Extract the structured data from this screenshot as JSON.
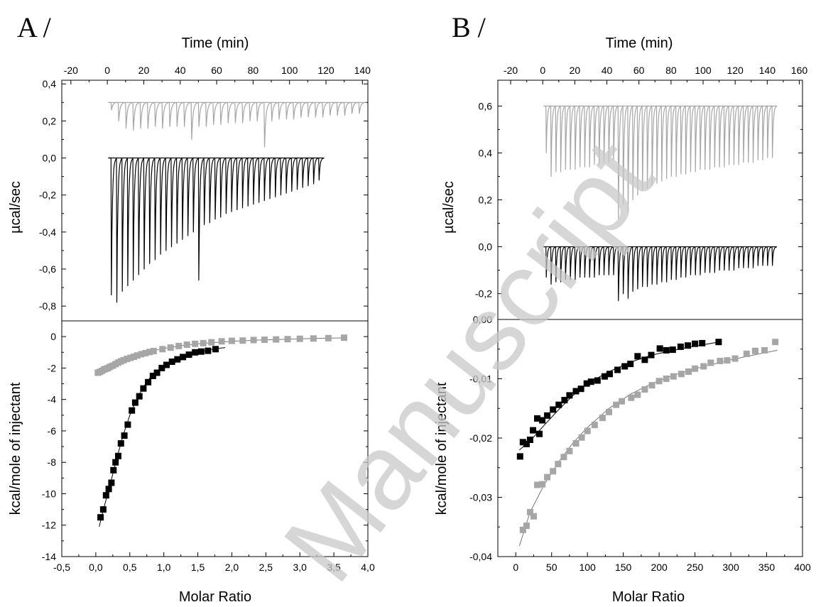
{
  "watermark": "Manuscript",
  "panels": [
    {
      "letter": "A /",
      "thermogram": {
        "x_label": "Time (min)",
        "y_label": "µcal/sec",
        "x_ticks": [
          "-20",
          "0",
          "20",
          "40",
          "60",
          "80",
          "100",
          "120",
          "140"
        ],
        "y_ticks": [
          "0,4",
          "0,2",
          "0,0",
          "-0,2",
          "-0,4",
          "-0,6",
          "-0,8"
        ]
      },
      "isotherm": {
        "x_label": "Molar Ratio",
        "y_label": "kcal/mole of injectant",
        "x_ticks": [
          "-0,5",
          "0,0",
          "0,5",
          "1,0",
          "1,5",
          "2,0",
          "2,5",
          "3,0",
          "3,5",
          "4,0"
        ],
        "y_ticks": [
          "0",
          "-2",
          "-4",
          "-6",
          "-8",
          "-10",
          "-12",
          "-14"
        ]
      }
    },
    {
      "letter": "B /",
      "thermogram": {
        "x_label": "Time (min)",
        "y_label": "µcal/sec",
        "x_ticks": [
          "-20",
          "0",
          "20",
          "40",
          "60",
          "80",
          "100",
          "120",
          "140",
          "160"
        ],
        "y_ticks": [
          "0,6",
          "0,4",
          "0,2",
          "0,0",
          "-0,2"
        ]
      },
      "isotherm": {
        "x_label": "Molar Ratio",
        "y_label": "kcal/mole of injectant",
        "x_ticks": [
          "0",
          "50",
          "100",
          "150",
          "200",
          "250",
          "300",
          "350",
          "400"
        ],
        "y_ticks": [
          "0,00",
          "-0,01",
          "-0,02",
          "-0,03",
          "-0,04"
        ]
      }
    }
  ],
  "chart_data": [
    {
      "type": "line",
      "panel": "A",
      "part": "thermogram",
      "xlabel": "Time (min)",
      "ylabel": "µcal/sec",
      "xlim": [
        -25,
        143
      ],
      "ylim": [
        -0.88,
        0.42
      ],
      "series": [
        {
          "color": "#a6a6a6",
          "baseline": 0.3,
          "x": [
            2,
            6,
            10,
            14,
            18,
            22,
            26,
            30,
            34,
            38,
            42,
            46,
            50,
            54,
            58,
            62,
            66,
            70,
            74,
            78,
            82,
            86,
            90,
            94,
            98,
            102,
            106,
            110,
            114,
            118,
            122,
            126,
            130,
            134,
            138
          ],
          "y": [
            0.26,
            0.2,
            0.16,
            0.15,
            0.16,
            0.16,
            0.17,
            0.16,
            0.17,
            0.17,
            0.17,
            0.1,
            0.17,
            0.17,
            0.18,
            0.18,
            0.19,
            0.19,
            0.19,
            0.2,
            0.2,
            0.06,
            0.2,
            0.21,
            0.21,
            0.21,
            0.22,
            0.22,
            0.22,
            0.22,
            0.23,
            0.23,
            0.23,
            0.24,
            0.24
          ]
        },
        {
          "color": "#000000",
          "baseline": 0.0,
          "x": [
            2,
            5,
            8,
            11,
            14,
            17,
            20,
            23,
            26,
            29,
            32,
            35,
            38,
            41,
            44,
            47,
            50,
            53,
            56,
            59,
            62,
            65,
            68,
            71,
            74,
            77,
            80,
            83,
            86,
            89,
            92,
            95,
            98,
            101,
            104,
            107,
            110,
            113,
            116
          ],
          "y": [
            -0.74,
            -0.78,
            -0.72,
            -0.69,
            -0.66,
            -0.63,
            -0.6,
            -0.57,
            -0.55,
            -0.52,
            -0.5,
            -0.48,
            -0.46,
            -0.44,
            -0.42,
            -0.4,
            -0.66,
            -0.36,
            -0.35,
            -0.33,
            -0.32,
            -0.3,
            -0.29,
            -0.28,
            -0.27,
            -0.26,
            -0.25,
            -0.24,
            -0.23,
            -0.22,
            -0.21,
            -0.2,
            -0.19,
            -0.18,
            -0.17,
            -0.16,
            -0.15,
            -0.14,
            -0.12
          ]
        }
      ]
    },
    {
      "type": "scatter",
      "panel": "A",
      "part": "isotherm",
      "xlabel": "Molar Ratio",
      "ylabel": "kcal/mole of injectant",
      "xlim": [
        -0.5,
        4.0
      ],
      "ylim": [
        -14,
        1
      ],
      "series": [
        {
          "color": "#a6a6a6",
          "x": [
            0.03,
            0.06,
            0.09,
            0.12,
            0.15,
            0.18,
            0.21,
            0.25,
            0.29,
            0.33,
            0.37,
            0.41,
            0.46,
            0.51,
            0.56,
            0.61,
            0.67,
            0.73,
            0.79,
            0.85,
            0.98,
            1.1,
            1.22,
            1.34,
            1.46,
            1.58,
            1.7,
            1.85,
            2.0,
            2.16,
            2.32,
            2.48,
            2.65,
            2.82,
            3.0,
            3.2,
            3.42,
            3.65
          ],
          "y": [
            -2.3,
            -2.25,
            -2.18,
            -2.1,
            -2.05,
            -2.0,
            -1.92,
            -1.85,
            -1.75,
            -1.65,
            -1.57,
            -1.5,
            -1.42,
            -1.35,
            -1.28,
            -1.2,
            -1.12,
            -1.05,
            -0.98,
            -0.92,
            -0.8,
            -0.7,
            -0.6,
            -0.52,
            -0.46,
            -0.42,
            -0.36,
            -0.3,
            -0.27,
            -0.25,
            -0.22,
            -0.2,
            -0.18,
            -0.16,
            -0.14,
            -0.12,
            -0.1,
            -0.07
          ]
        },
        {
          "color": "#000000",
          "x": [
            0.07,
            0.11,
            0.15,
            0.19,
            0.23,
            0.26,
            0.29,
            0.33,
            0.37,
            0.42,
            0.47,
            0.53,
            0.58,
            0.64,
            0.7,
            0.77,
            0.84,
            0.9,
            0.97,
            1.04,
            1.12,
            1.2,
            1.28,
            1.37,
            1.46,
            1.55,
            1.65,
            1.76
          ],
          "y": [
            -11.5,
            -11.0,
            -10.1,
            -9.7,
            -9.3,
            -8.5,
            -8.0,
            -7.6,
            -6.8,
            -6.3,
            -5.6,
            -4.7,
            -4.2,
            -3.8,
            -3.3,
            -2.9,
            -2.5,
            -2.3,
            -2.0,
            -1.8,
            -1.6,
            -1.45,
            -1.3,
            -1.15,
            -1.0,
            -0.95,
            -0.9,
            -0.8
          ]
        }
      ],
      "fits": [
        {
          "color": "#000000",
          "x": [
            0.05,
            0.1,
            0.2,
            0.3,
            0.4,
            0.5,
            0.6,
            0.7,
            0.8,
            0.9,
            1.0,
            1.1,
            1.2,
            1.3,
            1.4,
            1.5,
            1.6,
            1.7,
            1.8,
            1.9
          ],
          "y": [
            -12.1,
            -11.2,
            -9.6,
            -7.9,
            -6.3,
            -5.0,
            -4.0,
            -3.2,
            -2.6,
            -2.2,
            -1.9,
            -1.6,
            -1.4,
            -1.25,
            -1.1,
            -1.0,
            -0.9,
            -0.82,
            -0.75,
            -0.7
          ]
        },
        {
          "color": "#a6a6a6",
          "x": [
            0.0,
            0.2,
            0.4,
            0.6,
            0.8,
            1.0,
            1.3,
            1.6,
            2.0,
            2.4,
            2.8,
            3.2,
            3.65
          ],
          "y": [
            -2.3,
            -1.95,
            -1.6,
            -1.25,
            -0.95,
            -0.75,
            -0.55,
            -0.42,
            -0.3,
            -0.22,
            -0.17,
            -0.12,
            -0.08
          ]
        }
      ]
    },
    {
      "type": "line",
      "panel": "B",
      "part": "thermogram",
      "xlabel": "Time (min)",
      "ylabel": "µcal/sec",
      "xlim": [
        -28,
        162
      ],
      "ylim": [
        -0.31,
        0.71
      ],
      "series": [
        {
          "color": "#a6a6a6",
          "baseline": 0.6,
          "x": [
            2,
            5,
            8,
            11,
            14,
            17,
            20,
            23,
            26,
            29,
            32,
            35,
            38,
            41,
            44,
            47,
            50,
            53,
            56,
            59,
            62,
            65,
            68,
            71,
            74,
            77,
            80,
            83,
            86,
            89,
            92,
            95,
            98,
            101,
            104,
            107,
            110,
            113,
            116,
            119,
            122,
            125,
            128,
            131,
            134,
            137,
            140,
            143
          ],
          "y": [
            0.4,
            0.3,
            0.32,
            0.32,
            0.33,
            0.33,
            0.33,
            0.34,
            0.34,
            0.34,
            0.35,
            0.35,
            0.36,
            0.36,
            0.37,
            0.12,
            0.18,
            0.15,
            0.2,
            0.22,
            0.24,
            0.25,
            0.26,
            0.27,
            0.28,
            0.29,
            0.3,
            0.3,
            0.31,
            0.31,
            0.32,
            0.32,
            0.33,
            0.33,
            0.33,
            0.34,
            0.34,
            0.34,
            0.35,
            0.35,
            0.35,
            0.36,
            0.36,
            0.36,
            0.37,
            0.37,
            0.38,
            0.38
          ]
        },
        {
          "color": "#000000",
          "baseline": 0.0,
          "x": [
            2,
            5,
            8,
            11,
            14,
            17,
            20,
            23,
            26,
            29,
            32,
            35,
            38,
            41,
            44,
            47,
            50,
            53,
            56,
            59,
            62,
            65,
            68,
            71,
            74,
            77,
            80,
            83,
            86,
            89,
            92,
            95,
            98,
            101,
            104,
            107,
            110,
            113,
            116,
            119,
            122,
            125,
            128,
            131,
            134,
            137,
            140,
            143
          ],
          "y": [
            -0.13,
            -0.16,
            -0.15,
            -0.15,
            -0.14,
            -0.14,
            -0.14,
            -0.13,
            -0.13,
            -0.13,
            -0.13,
            -0.12,
            -0.12,
            -0.12,
            -0.12,
            -0.23,
            -0.2,
            -0.22,
            -0.19,
            -0.18,
            -0.17,
            -0.17,
            -0.16,
            -0.16,
            -0.15,
            -0.15,
            -0.14,
            -0.14,
            -0.13,
            -0.13,
            -0.12,
            -0.12,
            -0.12,
            -0.11,
            -0.11,
            -0.11,
            -0.1,
            -0.1,
            -0.1,
            -0.1,
            -0.09,
            -0.09,
            -0.09,
            -0.09,
            -0.08,
            -0.08,
            -0.08,
            -0.08
          ]
        }
      ]
    },
    {
      "type": "scatter",
      "panel": "B",
      "part": "isotherm",
      "xlabel": "Molar Ratio",
      "ylabel": "kcal/mole of injectant",
      "xlim": [
        -25,
        400
      ],
      "ylim": [
        -0.04,
        0.0
      ],
      "series": [
        {
          "color": "#000000",
          "x": [
            6,
            10,
            15,
            20,
            24,
            30,
            33,
            37,
            44,
            52,
            60,
            68,
            75,
            84,
            91,
            99,
            105,
            114,
            124,
            131,
            142,
            152,
            160,
            170,
            180,
            189,
            201,
            210,
            219,
            230,
            240,
            250,
            260,
            283
          ],
          "y": [
            -0.0231,
            -0.0207,
            -0.021,
            -0.0203,
            -0.0187,
            -0.0167,
            -0.0193,
            -0.017,
            -0.0162,
            -0.0152,
            -0.0144,
            -0.0136,
            -0.0128,
            -0.0121,
            -0.0117,
            -0.0108,
            -0.0105,
            -0.0103,
            -0.0096,
            -0.0092,
            -0.0085,
            -0.0079,
            -0.0075,
            -0.0062,
            -0.0068,
            -0.006,
            -0.0049,
            -0.0052,
            -0.0051,
            -0.0046,
            -0.0044,
            -0.0041,
            -0.004,
            -0.0038
          ]
        },
        {
          "color": "#a6a6a6",
          "x": [
            10,
            15,
            20,
            25,
            30,
            37,
            44,
            52,
            59,
            67,
            75,
            84,
            92,
            100,
            110,
            121,
            130,
            140,
            148,
            161,
            170,
            180,
            190,
            200,
            210,
            220,
            231,
            241,
            250,
            262,
            272,
            285,
            295,
            306,
            322,
            334,
            347,
            362
          ],
          "y": [
            -0.0355,
            -0.0348,
            -0.0325,
            -0.0332,
            -0.0279,
            -0.0278,
            -0.0266,
            -0.0256,
            -0.0244,
            -0.0232,
            -0.0222,
            -0.0209,
            -0.0199,
            -0.0188,
            -0.0178,
            -0.0166,
            -0.0156,
            -0.0144,
            -0.0138,
            -0.0132,
            -0.0127,
            -0.0118,
            -0.0111,
            -0.0104,
            -0.01,
            -0.0096,
            -0.0092,
            -0.0088,
            -0.0083,
            -0.0079,
            -0.0073,
            -0.007,
            -0.0069,
            -0.0066,
            -0.0058,
            -0.0053,
            -0.0052,
            -0.0038
          ]
        }
      ],
      "fits": [
        {
          "color": "#000000",
          "x": [
            5,
            20,
            40,
            60,
            80,
            100,
            130,
            160,
            190,
            220,
            250,
            283
          ],
          "y": [
            -0.022,
            -0.0205,
            -0.0178,
            -0.0152,
            -0.0128,
            -0.0108,
            -0.0088,
            -0.0072,
            -0.006,
            -0.0052,
            -0.0045,
            -0.0038
          ]
        },
        {
          "color": "#a6a6a6",
          "x": [
            5,
            20,
            40,
            60,
            80,
            100,
            130,
            160,
            190,
            220,
            260,
            300,
            340,
            365
          ],
          "y": [
            -0.0382,
            -0.0325,
            -0.0278,
            -0.024,
            -0.0208,
            -0.0182,
            -0.015,
            -0.0126,
            -0.0108,
            -0.0094,
            -0.008,
            -0.0068,
            -0.0058,
            -0.0052
          ]
        }
      ]
    }
  ]
}
